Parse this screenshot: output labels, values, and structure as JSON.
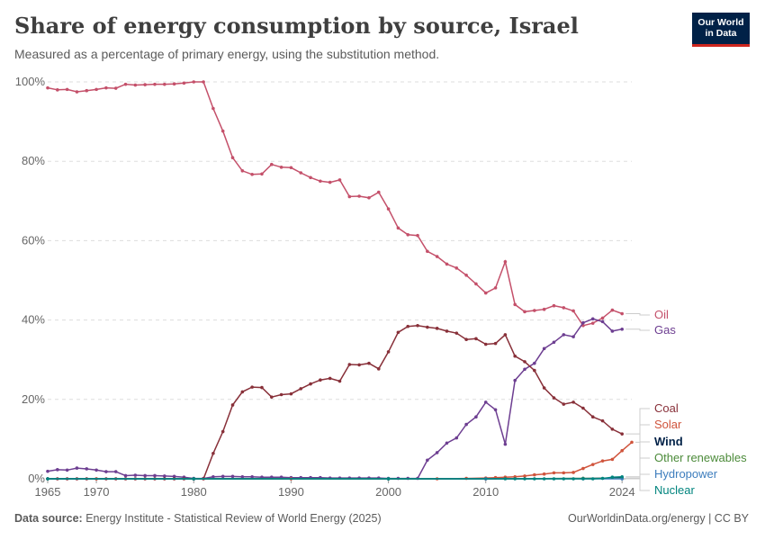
{
  "header": {
    "title": "Share of energy consumption by source, Israel",
    "subtitle": "Measured as a percentage of primary energy, using the substitution method.",
    "logo_line1": "Our World",
    "logo_line2": "in Data"
  },
  "footer": {
    "source_label": "Data source:",
    "source_text": "Energy Institute - Statistical Review of World Energy (2025)",
    "right_text": "OurWorldinData.org/energy | CC BY"
  },
  "chart_data": {
    "type": "line",
    "title": "Share of energy consumption by source, Israel",
    "xlabel": "",
    "ylabel": "",
    "x_range": [
      1965,
      2024
    ],
    "ylim": [
      0,
      100
    ],
    "y_ticks": [
      0,
      20,
      40,
      60,
      80,
      100
    ],
    "y_tick_labels": [
      "0%",
      "20%",
      "40%",
      "60%",
      "80%",
      "100%"
    ],
    "x_ticks": [
      1965,
      1970,
      1980,
      1990,
      2000,
      2010,
      2024
    ],
    "x_tick_labels": [
      "1965",
      "1970",
      "1980",
      "1990",
      "2000",
      "2010",
      "2024"
    ],
    "grid": "horizontal dashed",
    "legend": "right, labels at line ends",
    "series": [
      {
        "name": "Oil",
        "color": "#c4506a",
        "points": [
          [
            1965,
            98.5
          ],
          [
            1966,
            98
          ],
          [
            1967,
            98.1
          ],
          [
            1968,
            97.5
          ],
          [
            1969,
            97.8
          ],
          [
            1970,
            98.1
          ],
          [
            1971,
            98.5
          ],
          [
            1972,
            98.4
          ],
          [
            1973,
            99.4
          ],
          [
            1974,
            99.2
          ],
          [
            1975,
            99.3
          ],
          [
            1976,
            99.4
          ],
          [
            1977,
            99.4
          ],
          [
            1978,
            99.5
          ],
          [
            1979,
            99.7
          ],
          [
            1980,
            100
          ],
          [
            1981,
            100
          ],
          [
            1982,
            93.3
          ],
          [
            1983,
            87.6
          ],
          [
            1984,
            80.9
          ],
          [
            1985,
            77.6
          ],
          [
            1986,
            76.7
          ],
          [
            1987,
            76.8
          ],
          [
            1988,
            79.2
          ],
          [
            1989,
            78.5
          ],
          [
            1990,
            78.4
          ],
          [
            1991,
            77.1
          ],
          [
            1992,
            75.9
          ],
          [
            1993,
            75
          ],
          [
            1994,
            74.7
          ],
          [
            1995,
            75.3
          ],
          [
            1996,
            71.1
          ],
          [
            1997,
            71.2
          ],
          [
            1998,
            70.8
          ],
          [
            1999,
            72.2
          ],
          [
            2000,
            68
          ],
          [
            2001,
            63.2
          ],
          [
            2002,
            61.5
          ],
          [
            2003,
            61.3
          ],
          [
            2004,
            57.3
          ],
          [
            2005,
            56
          ],
          [
            2006,
            54.1
          ],
          [
            2007,
            53.1
          ],
          [
            2008,
            51.3
          ],
          [
            2009,
            49.1
          ],
          [
            2010,
            46.8
          ],
          [
            2011,
            48.1
          ],
          [
            2012,
            54.7
          ],
          [
            2013,
            43.9
          ],
          [
            2014,
            42.1
          ],
          [
            2015,
            42.4
          ],
          [
            2016,
            42.7
          ],
          [
            2017,
            43.6
          ],
          [
            2018,
            43.1
          ],
          [
            2019,
            42.3
          ],
          [
            2020,
            38.6
          ],
          [
            2021,
            39.2
          ],
          [
            2022,
            40.5
          ],
          [
            2023,
            42.5
          ],
          [
            2024,
            41.6
          ]
        ]
      },
      {
        "name": "Gas",
        "color": "#6d3e91",
        "points": [
          [
            1965,
            1.9
          ],
          [
            1966,
            2.3
          ],
          [
            1967,
            2.2
          ],
          [
            1968,
            2.7
          ],
          [
            1969,
            2.5
          ],
          [
            1970,
            2.2
          ],
          [
            1971,
            1.8
          ],
          [
            1972,
            1.8
          ],
          [
            1973,
            0.8
          ],
          [
            1974,
            0.9
          ],
          [
            1975,
            0.8
          ],
          [
            1976,
            0.8
          ],
          [
            1977,
            0.7
          ],
          [
            1978,
            0.6
          ],
          [
            1979,
            0.4
          ],
          [
            1980,
            0.1
          ],
          [
            1981,
            0.1
          ],
          [
            1982,
            0.5
          ],
          [
            1983,
            0.6
          ],
          [
            1984,
            0.6
          ],
          [
            1985,
            0.5
          ],
          [
            1986,
            0.5
          ],
          [
            1987,
            0.4
          ],
          [
            1988,
            0.4
          ],
          [
            1989,
            0.4
          ],
          [
            1990,
            0.3
          ],
          [
            1991,
            0.3
          ],
          [
            1992,
            0.3
          ],
          [
            1993,
            0.3
          ],
          [
            1994,
            0.2
          ],
          [
            1995,
            0.2
          ],
          [
            1996,
            0.2
          ],
          [
            1997,
            0.2
          ],
          [
            1998,
            0.2
          ],
          [
            1999,
            0.2
          ],
          [
            2000,
            0.1
          ],
          [
            2001,
            0.1
          ],
          [
            2002,
            0.1
          ],
          [
            2003,
            0.1
          ],
          [
            2004,
            4.7
          ],
          [
            2005,
            6.6
          ],
          [
            2006,
            9
          ],
          [
            2007,
            10.3
          ],
          [
            2008,
            13.7
          ],
          [
            2009,
            15.6
          ],
          [
            2010,
            19.3
          ],
          [
            2011,
            17.4
          ],
          [
            2012,
            8.7
          ],
          [
            2013,
            24.8
          ],
          [
            2014,
            27.6
          ],
          [
            2015,
            29.1
          ],
          [
            2016,
            32.8
          ],
          [
            2017,
            34.4
          ],
          [
            2018,
            36.3
          ],
          [
            2019,
            35.8
          ],
          [
            2020,
            39.3
          ],
          [
            2021,
            40.3
          ],
          [
            2022,
            39.6
          ],
          [
            2023,
            37.2
          ],
          [
            2024,
            37.7
          ]
        ]
      },
      {
        "name": "Coal",
        "color": "#883039",
        "points": [
          [
            1965,
            0
          ],
          [
            1966,
            0
          ],
          [
            1967,
            0
          ],
          [
            1968,
            0
          ],
          [
            1969,
            0
          ],
          [
            1970,
            0
          ],
          [
            1971,
            0
          ],
          [
            1972,
            0
          ],
          [
            1973,
            0
          ],
          [
            1974,
            0
          ],
          [
            1975,
            0
          ],
          [
            1976,
            0
          ],
          [
            1977,
            0
          ],
          [
            1978,
            0
          ],
          [
            1979,
            0
          ],
          [
            1980,
            0
          ],
          [
            1981,
            0
          ],
          [
            1982,
            6.4
          ],
          [
            1983,
            11.9
          ],
          [
            1984,
            18.6
          ],
          [
            1985,
            21.9
          ],
          [
            1986,
            23.1
          ],
          [
            1987,
            23
          ],
          [
            1988,
            20.6
          ],
          [
            1989,
            21.2
          ],
          [
            1990,
            21.4
          ],
          [
            1991,
            22.7
          ],
          [
            1992,
            23.9
          ],
          [
            1993,
            24.9
          ],
          [
            1994,
            25.3
          ],
          [
            1995,
            24.6
          ],
          [
            1996,
            28.8
          ],
          [
            1997,
            28.7
          ],
          [
            1998,
            29.1
          ],
          [
            1999,
            27.7
          ],
          [
            2000,
            32
          ],
          [
            2001,
            36.9
          ],
          [
            2002,
            38.4
          ],
          [
            2003,
            38.6
          ],
          [
            2004,
            38.2
          ],
          [
            2005,
            37.9
          ],
          [
            2006,
            37.2
          ],
          [
            2007,
            36.7
          ],
          [
            2008,
            35.1
          ],
          [
            2009,
            35.3
          ],
          [
            2010,
            33.9
          ],
          [
            2011,
            34.1
          ],
          [
            2012,
            36.3
          ],
          [
            2013,
            30.9
          ],
          [
            2014,
            29.5
          ],
          [
            2015,
            27.3
          ],
          [
            2016,
            22.9
          ],
          [
            2017,
            20.4
          ],
          [
            2018,
            18.8
          ],
          [
            2019,
            19.3
          ],
          [
            2020,
            17.8
          ],
          [
            2021,
            15.6
          ],
          [
            2022,
            14.6
          ],
          [
            2023,
            12.5
          ],
          [
            2024,
            11.3
          ]
        ]
      },
      {
        "name": "Solar",
        "color": "#d0543c",
        "points": [
          [
            1965,
            0
          ],
          [
            1970,
            0
          ],
          [
            1980,
            0
          ],
          [
            1990,
            0
          ],
          [
            2000,
            0
          ],
          [
            2005,
            0
          ],
          [
            2008,
            0.1
          ],
          [
            2010,
            0.2
          ],
          [
            2011,
            0.3
          ],
          [
            2012,
            0.4
          ],
          [
            2013,
            0.5
          ],
          [
            2014,
            0.7
          ],
          [
            2015,
            1
          ],
          [
            2016,
            1.2
          ],
          [
            2017,
            1.5
          ],
          [
            2018,
            1.5
          ],
          [
            2019,
            1.6
          ],
          [
            2020,
            2.6
          ],
          [
            2021,
            3.6
          ],
          [
            2022,
            4.5
          ],
          [
            2023,
            4.9
          ],
          [
            2024,
            7.1
          ],
          [
            2025,
            9.2
          ]
        ]
      },
      {
        "name": "Wind",
        "color": "#002147",
        "points": [
          [
            1965,
            0
          ],
          [
            1980,
            0
          ],
          [
            2000,
            0
          ],
          [
            2010,
            0
          ],
          [
            2020,
            0.1
          ],
          [
            2024,
            0.2
          ]
        ]
      },
      {
        "name": "Other renewables",
        "color": "#4c8b3a",
        "points": [
          [
            1965,
            0
          ],
          [
            1980,
            0
          ],
          [
            2000,
            0
          ],
          [
            2010,
            0
          ],
          [
            2020,
            0.1
          ],
          [
            2024,
            0.1
          ]
        ]
      },
      {
        "name": "Hydropower",
        "color": "#3d7dbd",
        "points": [
          [
            1965,
            0
          ],
          [
            1980,
            0
          ],
          [
            2000,
            0
          ],
          [
            2010,
            0
          ],
          [
            2020,
            0
          ],
          [
            2024,
            0
          ]
        ]
      },
      {
        "name": "Nuclear",
        "color": "#00847e",
        "points": [
          [
            1965,
            0
          ],
          [
            1980,
            0
          ],
          [
            2000,
            0
          ],
          [
            2012,
            0
          ],
          [
            2013,
            0
          ],
          [
            2014,
            0
          ],
          [
            2015,
            0
          ],
          [
            2016,
            0
          ],
          [
            2017,
            0
          ],
          [
            2018,
            0
          ],
          [
            2019,
            0
          ],
          [
            2020,
            0
          ],
          [
            2021,
            0
          ],
          [
            2022,
            0.1
          ],
          [
            2023,
            0.4
          ],
          [
            2024,
            0.5
          ]
        ]
      }
    ]
  }
}
